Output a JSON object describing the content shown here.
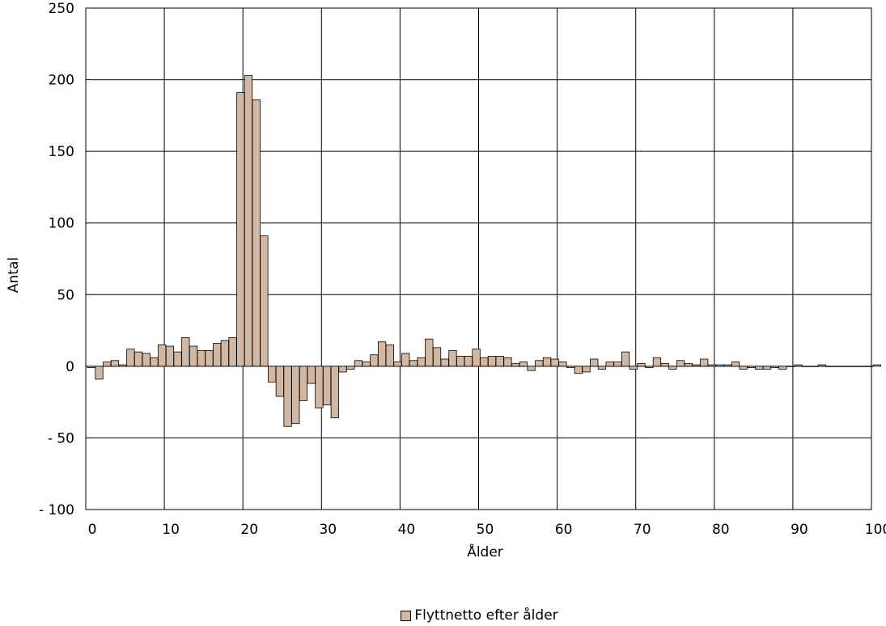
{
  "chart_data": {
    "type": "bar",
    "xlabel": "Ålder",
    "ylabel": "Antal",
    "xlim": [
      0,
      100
    ],
    "ylim": [
      -100,
      250
    ],
    "x_ticks": [
      0,
      10,
      20,
      30,
      40,
      50,
      60,
      70,
      80,
      90,
      100
    ],
    "y_ticks": [
      250,
      200,
      150,
      100,
      50,
      0,
      -50,
      -100
    ],
    "y_tick_labels": [
      "250",
      "200",
      "150",
      "100",
      "50",
      "0",
      "- 50",
      "- 100"
    ],
    "grid": true,
    "legend_position": "bottom",
    "series": [
      {
        "name": "Flyttnetto efter ålder",
        "color": "#d2b8a3",
        "x": [
          0,
          1,
          2,
          3,
          4,
          5,
          6,
          7,
          8,
          9,
          10,
          11,
          12,
          13,
          14,
          15,
          16,
          17,
          18,
          19,
          20,
          21,
          22,
          23,
          24,
          25,
          26,
          27,
          28,
          29,
          30,
          31,
          32,
          33,
          34,
          35,
          36,
          37,
          38,
          39,
          40,
          41,
          42,
          43,
          44,
          45,
          46,
          47,
          48,
          49,
          50,
          51,
          52,
          53,
          54,
          55,
          56,
          57,
          58,
          59,
          60,
          61,
          62,
          63,
          64,
          65,
          66,
          67,
          68,
          69,
          70,
          71,
          72,
          73,
          74,
          75,
          76,
          77,
          78,
          79,
          80,
          81,
          82,
          83,
          84,
          85,
          86,
          87,
          88,
          89,
          90,
          91,
          92,
          93,
          94,
          95,
          96,
          97,
          98,
          99,
          100
        ],
        "values": [
          -1,
          -9,
          3,
          4,
          1,
          12,
          10,
          9,
          6,
          15,
          14,
          10,
          20,
          14,
          11,
          11,
          16,
          18,
          20,
          191,
          203,
          186,
          91,
          -11,
          -21,
          -42,
          -40,
          -24,
          -12,
          -29,
          -27,
          -36,
          -4,
          -2,
          4,
          3,
          8,
          17,
          15,
          3,
          9,
          4,
          6,
          19,
          13,
          5,
          11,
          7,
          7,
          12,
          6,
          7,
          7,
          6,
          2,
          3,
          -3,
          4,
          6,
          5,
          3,
          -1,
          -5,
          -4,
          5,
          -2,
          3,
          3,
          10,
          -2,
          2,
          -1,
          6,
          2,
          -2,
          4,
          2,
          1,
          5,
          1,
          1,
          1,
          3,
          -2,
          -1,
          -2,
          -2,
          -1,
          -2,
          0,
          1,
          0,
          0,
          1,
          0,
          0,
          0,
          0,
          0,
          0,
          1
        ]
      }
    ]
  }
}
